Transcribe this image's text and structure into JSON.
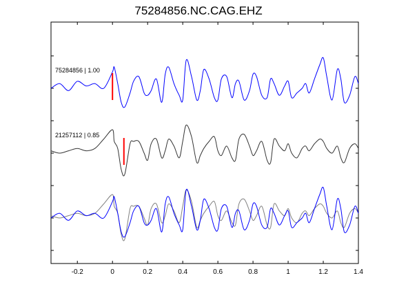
{
  "chart_data": {
    "type": "line",
    "title": "75284856.NC.CAG.EHZ",
    "xlabel": "",
    "ylabel": "",
    "xlim": [
      -0.35,
      1.4
    ],
    "x_ticks": [
      -0.2,
      0,
      0.2,
      0.4,
      0.6,
      0.8,
      1,
      1.2,
      1.4
    ],
    "x_tick_labels": [
      "-0.2",
      "0",
      "0.2",
      "0.4",
      "0.6",
      "0.8",
      "1",
      "1.2",
      "1.4"
    ],
    "grid": false,
    "x": [
      -0.35,
      -0.3,
      -0.25,
      -0.2,
      -0.15,
      -0.1,
      -0.05,
      0,
      0.01,
      0.03,
      0.05,
      0.07,
      0.1,
      0.12,
      0.15,
      0.18,
      0.2,
      0.22,
      0.25,
      0.28,
      0.3,
      0.32,
      0.35,
      0.38,
      0.4,
      0.42,
      0.45,
      0.48,
      0.5,
      0.52,
      0.55,
      0.58,
      0.6,
      0.62,
      0.65,
      0.68,
      0.7,
      0.72,
      0.75,
      0.78,
      0.8,
      0.82,
      0.85,
      0.88,
      0.9,
      0.92,
      0.95,
      0.98,
      1,
      1.02,
      1.05,
      1.08,
      1.1,
      1.12,
      1.15,
      1.18,
      1.2,
      1.22,
      1.25,
      1.28,
      1.3,
      1.32,
      1.35,
      1.38,
      1.4
    ],
    "series": [
      {
        "name": "75284856",
        "label": "75284856 | 1.00",
        "color": "#0000ff",
        "pick_time": 0,
        "values": [
          0.0,
          0.2,
          -0.1,
          0.3,
          0.1,
          0.2,
          0.0,
          0.7,
          0.9,
          0.2,
          -0.6,
          -0.8,
          -0.2,
          0.3,
          0.5,
          -0.2,
          -0.3,
          -0.1,
          0.4,
          -0.6,
          0.6,
          0.9,
          0.2,
          -0.3,
          -0.5,
          1.2,
          0.5,
          -0.5,
          -0.1,
          0.8,
          0.4,
          -0.4,
          -0.5,
          0.4,
          0.5,
          -0.4,
          0.2,
          0.3,
          -0.5,
          -0.1,
          0.6,
          0.5,
          -0.3,
          -0.4,
          0.4,
          0.2,
          -0.3,
          0.1,
          0.3,
          -0.4,
          -0.2,
          0.0,
          0.2,
          -0.2,
          0.4,
          1.0,
          1.3,
          0.5,
          -0.5,
          0.8,
          0.4,
          -0.6,
          -0.3,
          0.5,
          0.2
        ]
      },
      {
        "name": "21257112",
        "label": "21257112 | 0.85",
        "color": "#333333",
        "pick_time": 0.065,
        "values": [
          0.1,
          0.0,
          0.1,
          0.2,
          0.1,
          0.2,
          0.6,
          1.0,
          0.5,
          0.2,
          -0.7,
          -0.9,
          0.4,
          0.5,
          0.5,
          0.0,
          -0.3,
          0.4,
          0.6,
          -0.2,
          0.1,
          0.6,
          0.3,
          -0.2,
          0.5,
          1.2,
          0.7,
          -0.4,
          -0.1,
          0.2,
          0.5,
          0.7,
          0.1,
          -0.1,
          0.3,
          -0.2,
          -0.3,
          0.6,
          0.8,
          0.3,
          -0.1,
          0.1,
          0.5,
          -0.3,
          -0.4,
          0.6,
          0.3,
          0.1,
          0.4,
          0.0,
          -0.2,
          0.2,
          0.3,
          0.1,
          0.4,
          0.6,
          0.5,
          0.2,
          0.0,
          0.3,
          -0.2,
          -0.4,
          0.2,
          0.4,
          0.2
        ]
      }
    ]
  }
}
